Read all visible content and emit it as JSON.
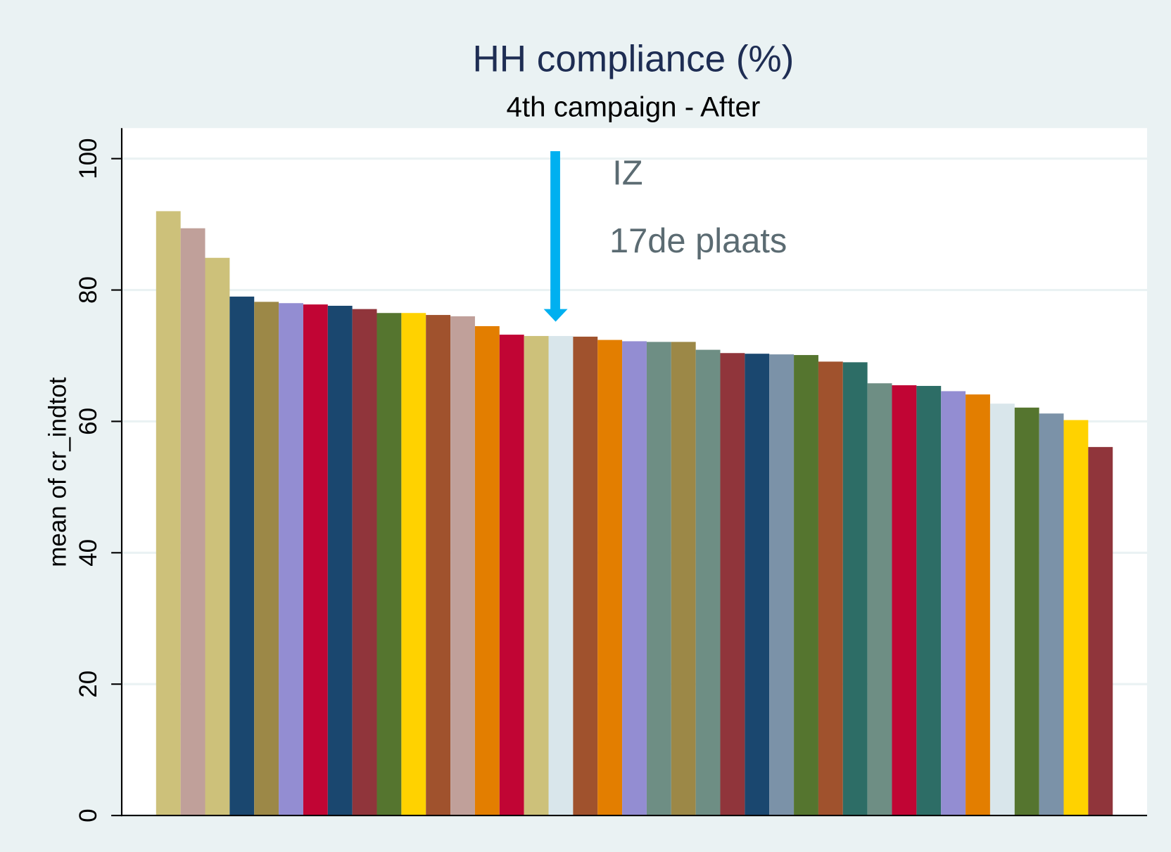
{
  "chart_data": {
    "type": "bar",
    "title": "HH compliance (%)",
    "subtitle": "4th campaign - After",
    "y_label": "mean of cr_indtot",
    "annotations": [
      "IZ",
      "17de plaats"
    ],
    "values": [
      92.0,
      89.4,
      84.9,
      79.0,
      78.2,
      78.0,
      77.8,
      77.6,
      77.1,
      76.5,
      76.5,
      76.2,
      76.0,
      74.5,
      73.2,
      73.0,
      73.0,
      72.9,
      72.4,
      72.2,
      72.1,
      72.1,
      70.9,
      70.4,
      70.3,
      70.2,
      70.1,
      69.1,
      69.0,
      65.8,
      65.5,
      65.4,
      64.6,
      64.1,
      62.7,
      62.1,
      61.2,
      60.2,
      56.1
    ],
    "colors": [
      "#cdc17a",
      "#c0a09a",
      "#cdc17a",
      "#1a476f",
      "#9c8847",
      "#938dd2",
      "#c10534",
      "#1a476f",
      "#90353b",
      "#55752f",
      "#ffd200",
      "#a0522d",
      "#c0a09a",
      "#e37e00",
      "#c10534",
      "#cdc17a",
      "#d9e6eb",
      "#a0522d",
      "#e37e00",
      "#938dd2",
      "#6e8e84",
      "#9c8847",
      "#6e8e84",
      "#90353b",
      "#1a476f",
      "#7b92a8",
      "#55752f",
      "#a0522d",
      "#2d6d66",
      "#6e8e84",
      "#c10534",
      "#2d6d66",
      "#938dd2",
      "#e37e00",
      "#d9e6eb",
      "#55752f",
      "#7b92a8",
      "#ffd200",
      "#90353b"
    ],
    "ylim": [
      0,
      100
    ],
    "yticks": [
      0,
      20,
      40,
      60,
      80,
      100
    ],
    "grid": true
  }
}
